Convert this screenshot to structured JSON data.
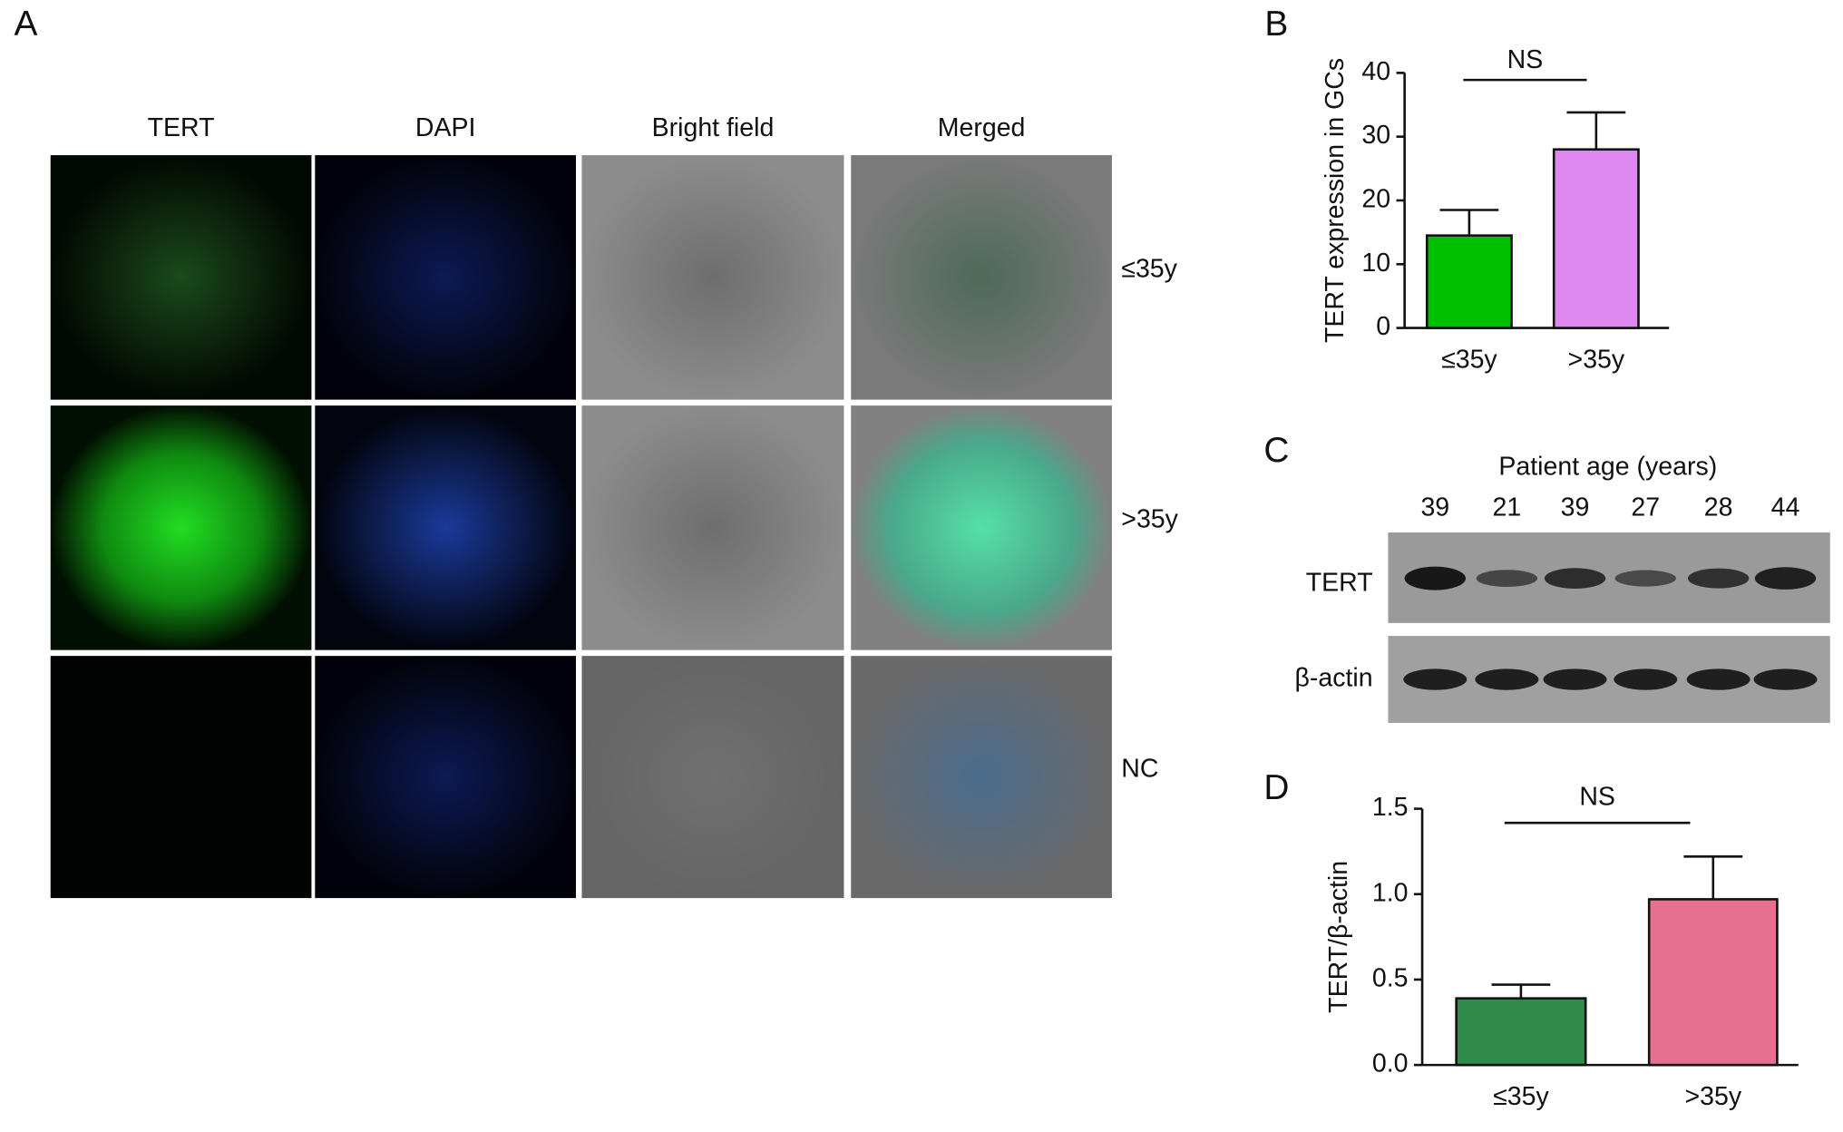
{
  "panels": [
    "A",
    "B",
    "C",
    "D"
  ],
  "microscopy": {
    "columns": [
      "TERT",
      "DAPI",
      "Bright field",
      "Merged"
    ],
    "rows": [
      "≤35y",
      ">35y",
      "NC"
    ]
  },
  "western": {
    "title": "Patient age (years)",
    "ages": [
      "39",
      "21",
      "39",
      "27",
      "28",
      "44"
    ],
    "rows": [
      "TERT",
      "β-actin"
    ]
  },
  "chart_data": [
    {
      "type": "bar",
      "y_label": "TERT expression in GCs",
      "annotation": "NS",
      "categories": [
        "≤35y",
        ">35y"
      ],
      "values": [
        14.5,
        28
      ],
      "errors": [
        4,
        5.8
      ],
      "colors": [
        "#00c000",
        "#dd88ee"
      ],
      "ylim": [
        0,
        40
      ],
      "yticks": [
        0,
        10,
        20,
        30,
        40
      ]
    },
    {
      "type": "bar",
      "y_label": "TERT/β-actin",
      "annotation": "NS",
      "categories": [
        "≤35y",
        ">35y"
      ],
      "values": [
        0.39,
        0.97
      ],
      "errors": [
        0.08,
        0.25
      ],
      "colors": [
        "#2e8b4a",
        "#e8708f"
      ],
      "ylim": [
        0,
        1.5
      ],
      "yticks": [
        {
          "value": 0,
          "label": "0.0"
        },
        {
          "value": 0.5,
          "label": "0.5"
        },
        {
          "value": 1,
          "label": "1.0"
        },
        {
          "value": 1.5,
          "label": "1.5"
        }
      ]
    }
  ]
}
